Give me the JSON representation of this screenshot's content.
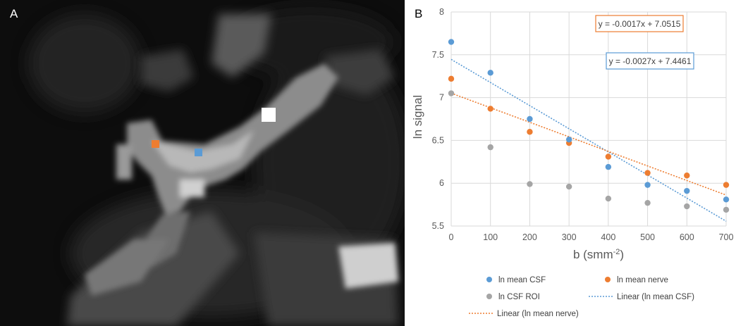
{
  "panels": {
    "a_label": "A",
    "b_label": "B"
  },
  "chart_data": {
    "type": "scatter",
    "xlabel": "b (smm",
    "xlabel_sup": "-2",
    "xlabel_close": ")",
    "ylabel": "ln signal",
    "xlim": [
      0,
      700
    ],
    "ylim": [
      5.5,
      8
    ],
    "x_ticks": [
      0,
      100,
      200,
      300,
      400,
      500,
      600,
      700
    ],
    "y_ticks": [
      "5.5",
      "6",
      "6.5",
      "7",
      "7.5",
      "8"
    ],
    "grid": true,
    "legend_position": "bottom",
    "x": [
      0,
      100,
      200,
      300,
      400,
      500,
      600,
      700
    ],
    "series": [
      {
        "name": "ln mean CSF",
        "color": "#5b9bd5",
        "values": [
          7.65,
          7.29,
          6.75,
          6.51,
          6.19,
          5.98,
          5.91,
          5.81
        ]
      },
      {
        "name": "ln mean nerve",
        "color": "#ed7d31",
        "values": [
          7.22,
          6.87,
          6.6,
          6.47,
          6.31,
          6.12,
          6.09,
          5.98
        ]
      },
      {
        "name": "ln CSF ROI",
        "color": "#a5a5a5",
        "values": [
          7.05,
          6.42,
          5.99,
          5.96,
          5.82,
          5.77,
          5.73,
          5.69
        ]
      }
    ],
    "trendlines": [
      {
        "name": "Linear (ln mean CSF)",
        "color": "#5b9bd5",
        "slope": -0.0027,
        "intercept": 7.4461,
        "equation": "y = -0.0027x + 7.4461"
      },
      {
        "name": "Linear (ln mean nerve)",
        "color": "#ed7d31",
        "slope": -0.0017,
        "intercept": 7.0515,
        "equation": "y = -0.0017x + 7.0515"
      }
    ]
  },
  "panel_a": {
    "markers": [
      {
        "name": "nerve-roi-marker",
        "color": "#ed7d31"
      },
      {
        "name": "csf-roi-marker",
        "color": "#5b9bd5"
      },
      {
        "name": "csf-reference-roi-marker",
        "color": "#ffffff"
      }
    ]
  }
}
